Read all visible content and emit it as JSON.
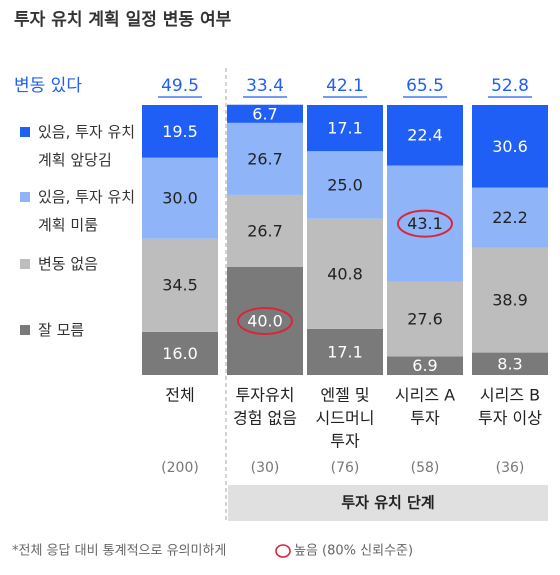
{
  "chart_data": {
    "type": "stacked_bar",
    "title": "투자 유치 계획 일정 변동 여부",
    "categories": [
      [
        "전체"
      ],
      [
        "투자유치",
        "경험 없음"
      ],
      [
        "엔젤 및",
        "시드머니",
        "투자"
      ],
      [
        "시리즈 A",
        "투자"
      ],
      [
        "시리즈 B",
        "투자 이상"
      ]
    ],
    "sample_labels": [
      "(200)",
      "(30)",
      "(76)",
      "(58)",
      "(36)"
    ],
    "group_label": "투자 유치 단계",
    "total": {
      "name": "변동 있다",
      "color": "#1f5ff5",
      "values": [
        49.5,
        33.4,
        42.1,
        65.5,
        52.8
      ]
    },
    "series": [
      {
        "name": "잘 모름",
        "color": "#7a7a7a",
        "text_color": "#ffffff",
        "values": [
          16.0,
          40.0,
          17.1,
          6.9,
          8.3
        ],
        "value_labels": [
          "16.0",
          "40.0",
          "17.1",
          "6.9",
          "8.3"
        ]
      },
      {
        "name": "변동 없음",
        "color": "#bdbdbd",
        "text_color": "#222222",
        "values": [
          34.5,
          26.7,
          40.8,
          27.6,
          38.9
        ],
        "value_labels": [
          "34.5",
          "26.7",
          "40.8",
          "27.6",
          "38.9"
        ]
      },
      {
        "name": "있음, 투자 유치 계획 미룸",
        "color": "#8fb4f8",
        "text_color": "#222222",
        "values": [
          30.0,
          26.7,
          25.0,
          43.1,
          22.2
        ],
        "value_labels": [
          "30.0",
          "26.7",
          "25.0",
          "43.1",
          "22.2"
        ]
      },
      {
        "name": "있음, 투자 유치 계획 앞당김",
        "color": "#1f5ff5",
        "text_color": "#ffffff",
        "values": [
          19.5,
          6.7,
          17.1,
          22.4,
          30.6
        ],
        "value_labels": [
          "19.5",
          "6.7",
          "17.1",
          "22.4",
          "30.6"
        ]
      }
    ],
    "highlights": [
      {
        "series": 0,
        "index": 1
      },
      {
        "series": 2,
        "index": 3
      }
    ],
    "highlight_color": "#d8263a",
    "footnote": [
      "*전체 응답 대비 통계적으로 유의미하게",
      "높음 (80% 신뢰수준)"
    ]
  }
}
